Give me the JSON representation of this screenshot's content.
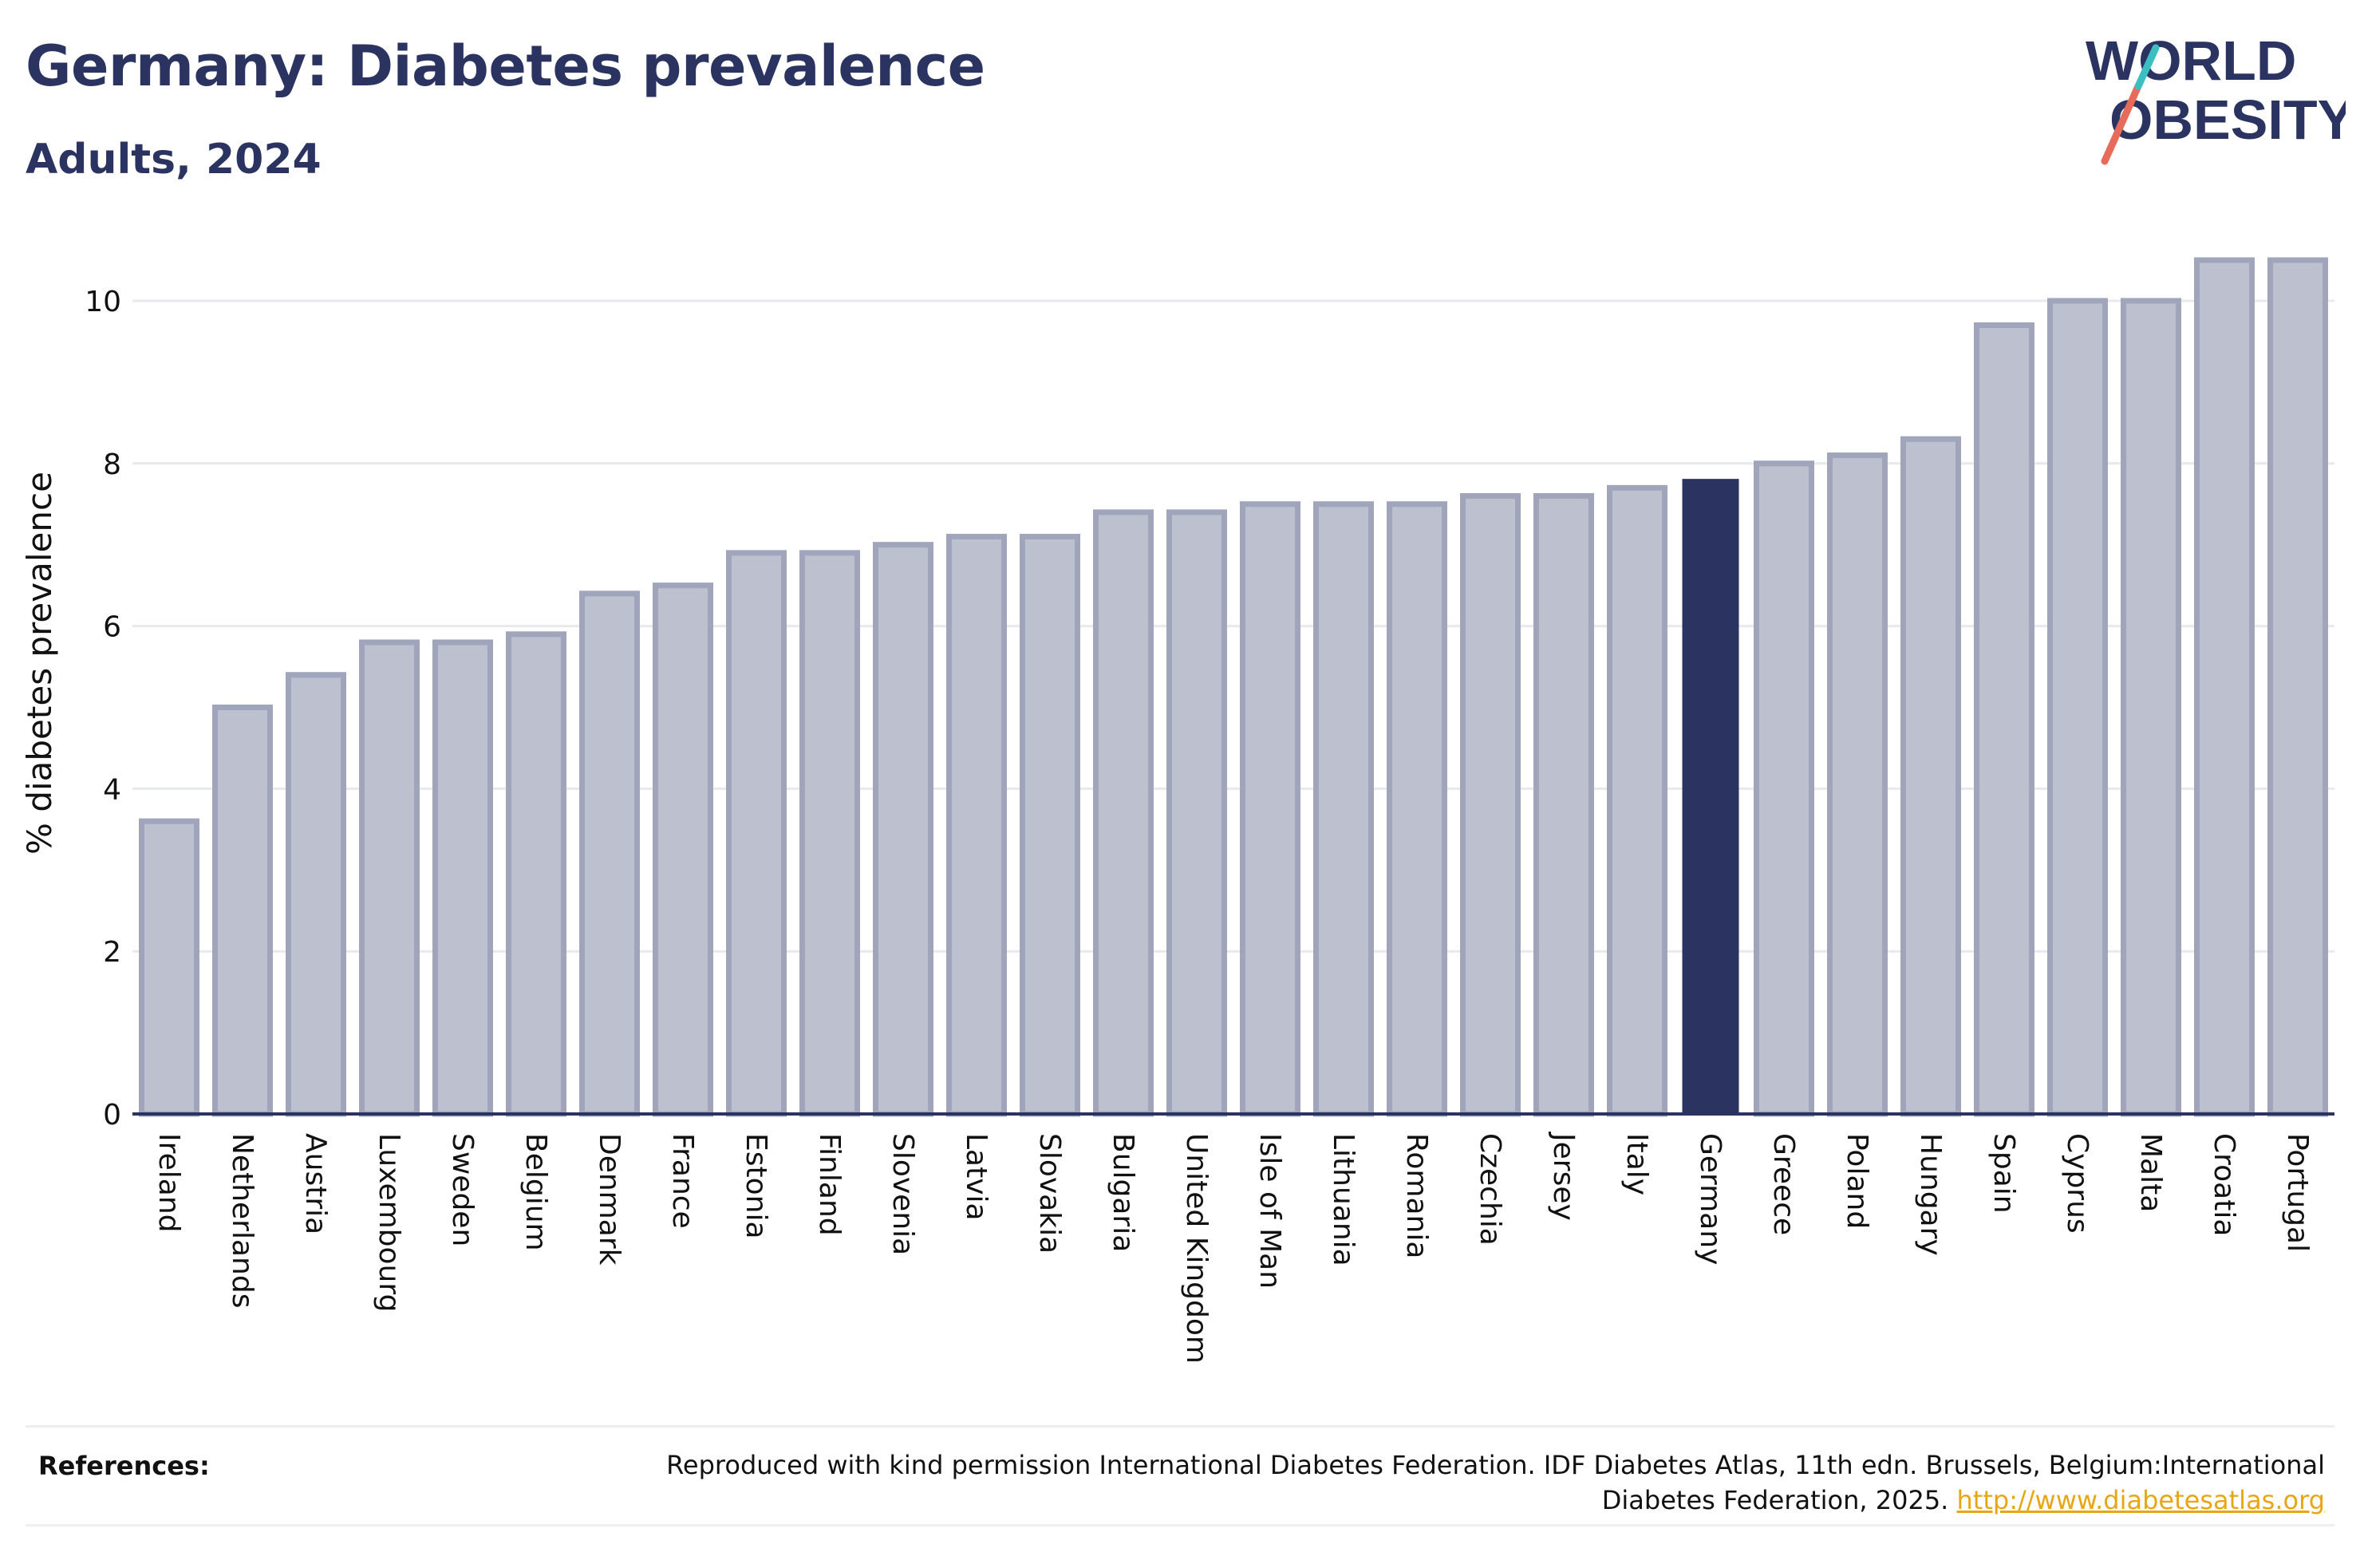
{
  "header": {
    "title": "Germany: Diabetes prevalence",
    "subtitle": "Adults, 2024"
  },
  "logo": {
    "line1": "WORLD",
    "line2": "OBESITY",
    "slash_colors": [
      "#e76b5a",
      "#3bbfc1"
    ]
  },
  "chart_data": {
    "type": "bar",
    "ylabel": "% diabetes prevalence",
    "xlabel": "",
    "ylim": [
      0,
      10.5
    ],
    "yticks": [
      0,
      2,
      4,
      6,
      8,
      10
    ],
    "grid": true,
    "highlight": "Germany",
    "colors": {
      "bar": "#bcc0cf",
      "bar_edge": "#a0a5bc",
      "highlight": "#2b3461",
      "grid": "#e8e9ee",
      "axis": "#2b3461"
    },
    "categories": [
      "Ireland",
      "Netherlands",
      "Austria",
      "Luxembourg",
      "Sweden",
      "Belgium",
      "Denmark",
      "France",
      "Estonia",
      "Finland",
      "Slovenia",
      "Latvia",
      "Slovakia",
      "Bulgaria",
      "United Kingdom",
      "Isle of Man",
      "Lithuania",
      "Romania",
      "Czechia",
      "Jersey",
      "Italy",
      "Germany",
      "Greece",
      "Poland",
      "Hungary",
      "Spain",
      "Cyprus",
      "Malta",
      "Croatia",
      "Portugal"
    ],
    "values": [
      3.6,
      5.0,
      5.4,
      5.8,
      5.8,
      5.9,
      6.4,
      6.5,
      6.9,
      6.9,
      7.0,
      7.1,
      7.1,
      7.4,
      7.4,
      7.5,
      7.5,
      7.5,
      7.6,
      7.6,
      7.7,
      7.8,
      8.0,
      8.1,
      8.3,
      9.7,
      10.0,
      10.0,
      10.5,
      10.5
    ]
  },
  "references": {
    "label": "References:",
    "text": "Reproduced with kind permission International Diabetes Federation. IDF Diabetes Atlas, 11th edn. Brussels, Belgium:International Diabetes Federation, 2025.",
    "link": "http://www.diabetesatlas.org"
  }
}
